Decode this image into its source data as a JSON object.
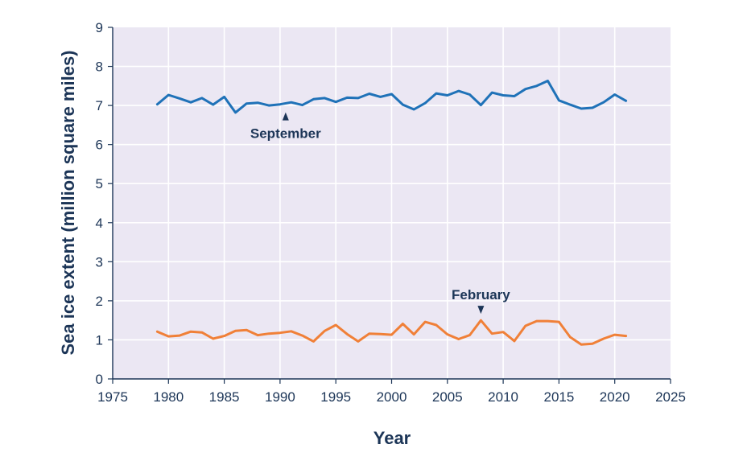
{
  "chart_data": {
    "type": "line",
    "title": "",
    "xlabel": "Year",
    "ylabel": "Sea ice extent (million square miles)",
    "xlim": [
      1975,
      2025
    ],
    "ylim": [
      0,
      9
    ],
    "xticks": [
      "1975",
      "1980",
      "1985",
      "1990",
      "1995",
      "2000",
      "2005",
      "2010",
      "2015",
      "2020",
      "2025"
    ],
    "yticks": [
      "0",
      "1",
      "2",
      "3",
      "4",
      "5",
      "6",
      "7",
      "8",
      "9"
    ],
    "grid": true,
    "legend": "none",
    "x": [
      1979,
      1980,
      1981,
      1982,
      1983,
      1984,
      1985,
      1986,
      1987,
      1988,
      1989,
      1990,
      1991,
      1992,
      1993,
      1994,
      1995,
      1996,
      1997,
      1998,
      1999,
      2000,
      2001,
      2002,
      2003,
      2004,
      2005,
      2006,
      2007,
      2008,
      2009,
      2010,
      2011,
      2012,
      2013,
      2014,
      2015,
      2016,
      2017,
      2018,
      2019,
      2020,
      2021
    ],
    "series": [
      {
        "name": "September",
        "color": "#1f72b8",
        "values": [
          7.03,
          7.27,
          7.18,
          7.08,
          7.19,
          7.02,
          7.22,
          6.82,
          7.05,
          7.07,
          7.0,
          7.03,
          7.08,
          7.01,
          7.16,
          7.19,
          7.09,
          7.2,
          7.19,
          7.3,
          7.22,
          7.29,
          7.02,
          6.9,
          7.06,
          7.31,
          7.26,
          7.37,
          7.28,
          7.01,
          7.33,
          7.26,
          7.24,
          7.42,
          7.5,
          7.63,
          7.13,
          7.02,
          6.92,
          6.94,
          7.08,
          7.28,
          7.12
        ]
      },
      {
        "name": "February",
        "color": "#f08038",
        "values": [
          1.21,
          1.09,
          1.11,
          1.21,
          1.19,
          1.03,
          1.1,
          1.23,
          1.25,
          1.12,
          1.16,
          1.18,
          1.22,
          1.11,
          0.96,
          1.23,
          1.38,
          1.15,
          0.96,
          1.16,
          1.15,
          1.13,
          1.41,
          1.14,
          1.46,
          1.38,
          1.14,
          1.02,
          1.12,
          1.5,
          1.16,
          1.2,
          0.97,
          1.36,
          1.48,
          1.48,
          1.46,
          1.07,
          0.88,
          0.9,
          1.03,
          1.13,
          1.1
        ]
      }
    ],
    "annotations": [
      {
        "text": "September",
        "series": "September",
        "x": 1990.5,
        "direction": "up"
      },
      {
        "text": "February",
        "series": "February",
        "x": 2008,
        "direction": "down"
      }
    ],
    "colors": {
      "plot_background": "#ebe7f3",
      "gridline": "#ffffff",
      "text": "#1c3557"
    }
  }
}
